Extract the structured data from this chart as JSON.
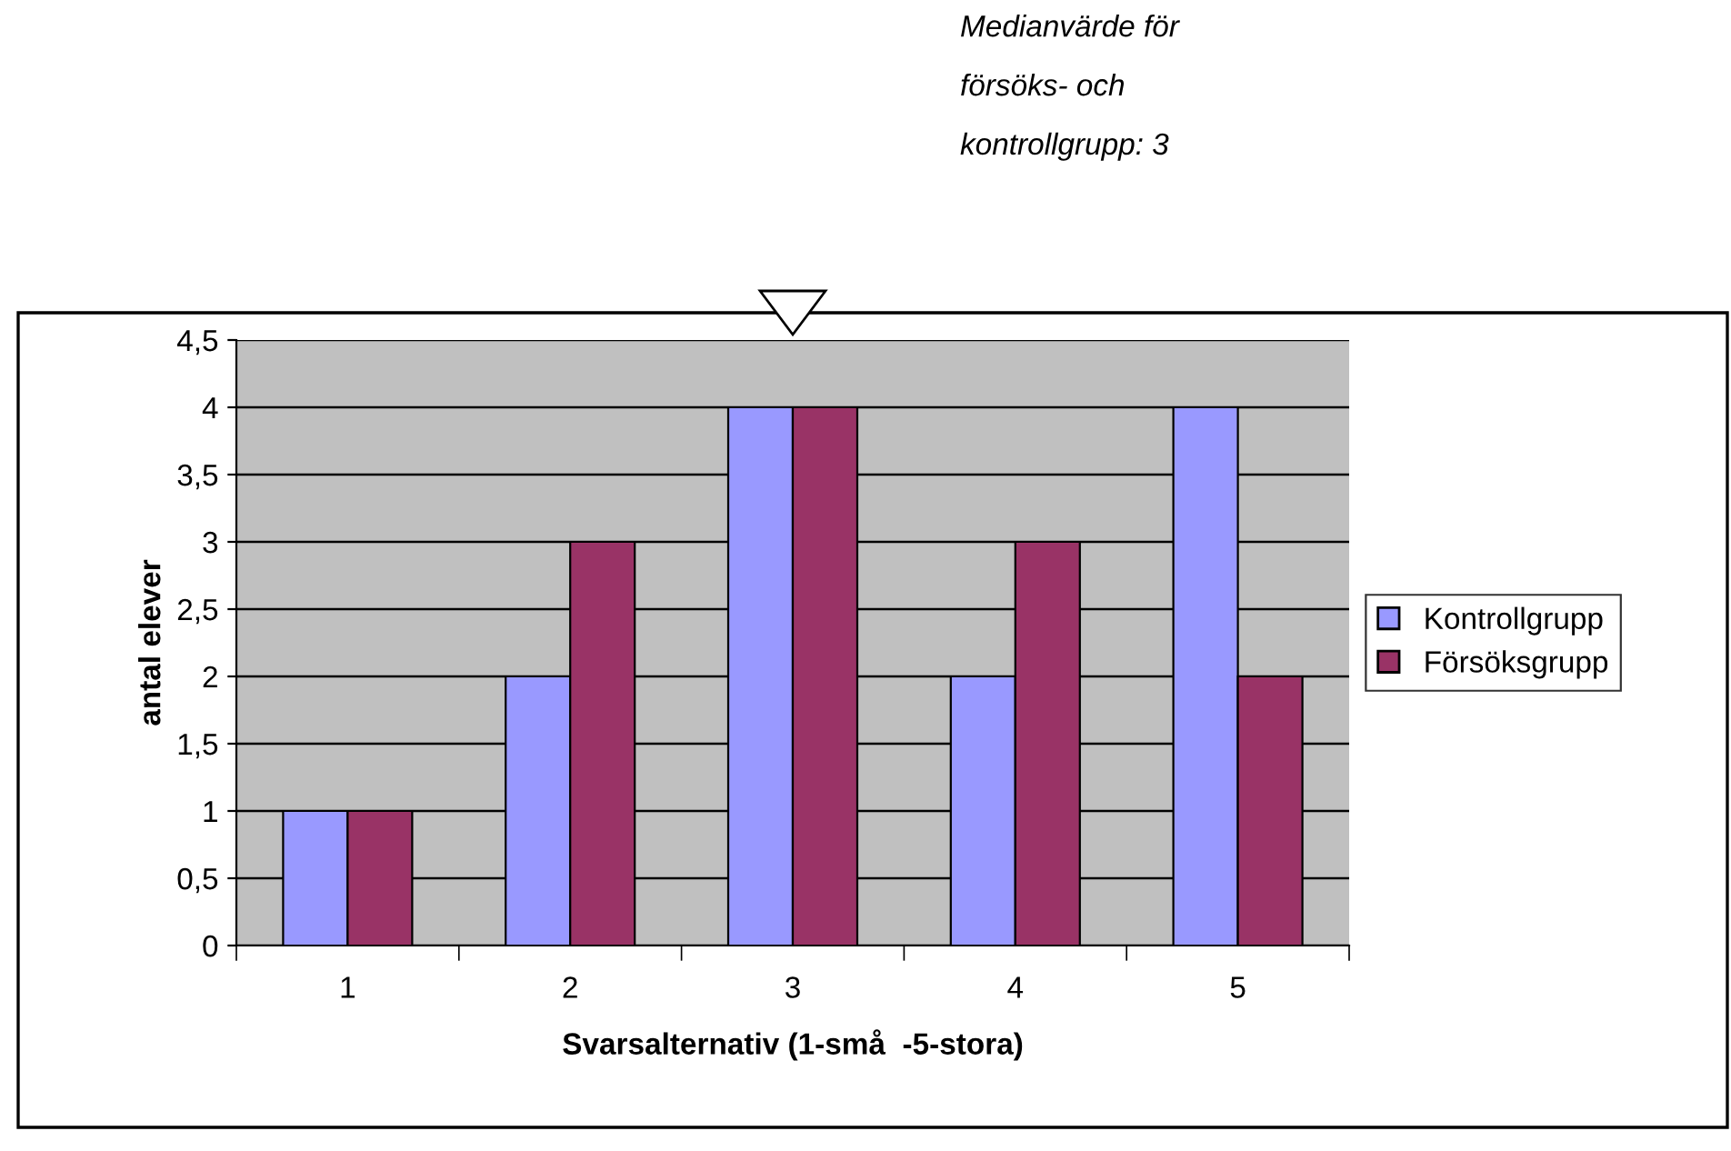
{
  "chart_data": {
    "type": "bar",
    "xlabel": "Svarsalternativ (1-små  -5-stora)",
    "ylabel": "antal elever",
    "categories": [
      "1",
      "2",
      "3",
      "4",
      "5"
    ],
    "series": [
      {
        "name": "Kontrollgrupp",
        "color": "#9999ff",
        "values": [
          1,
          2,
          4,
          2,
          4
        ]
      },
      {
        "name": "Försöksgrupp",
        "color": "#993366",
        "values": [
          1,
          3,
          4,
          3,
          2
        ]
      }
    ],
    "ylim": [
      0,
      4.5
    ],
    "yticks": [
      0,
      {
        "value": 0.5,
        "label": "0,5"
      },
      1,
      {
        "value": 1.5,
        "label": "1,5"
      },
      2,
      {
        "value": 2.5,
        "label": "2,5"
      },
      3,
      {
        "value": 3.5,
        "label": "3,5"
      },
      4,
      {
        "value": 4.5,
        "label": "4,5"
      }
    ],
    "grid": "y",
    "legend": "right",
    "annotations": [
      "Medianvärde för\nförsöks- och\nkontrollgrupp: 3"
    ]
  }
}
